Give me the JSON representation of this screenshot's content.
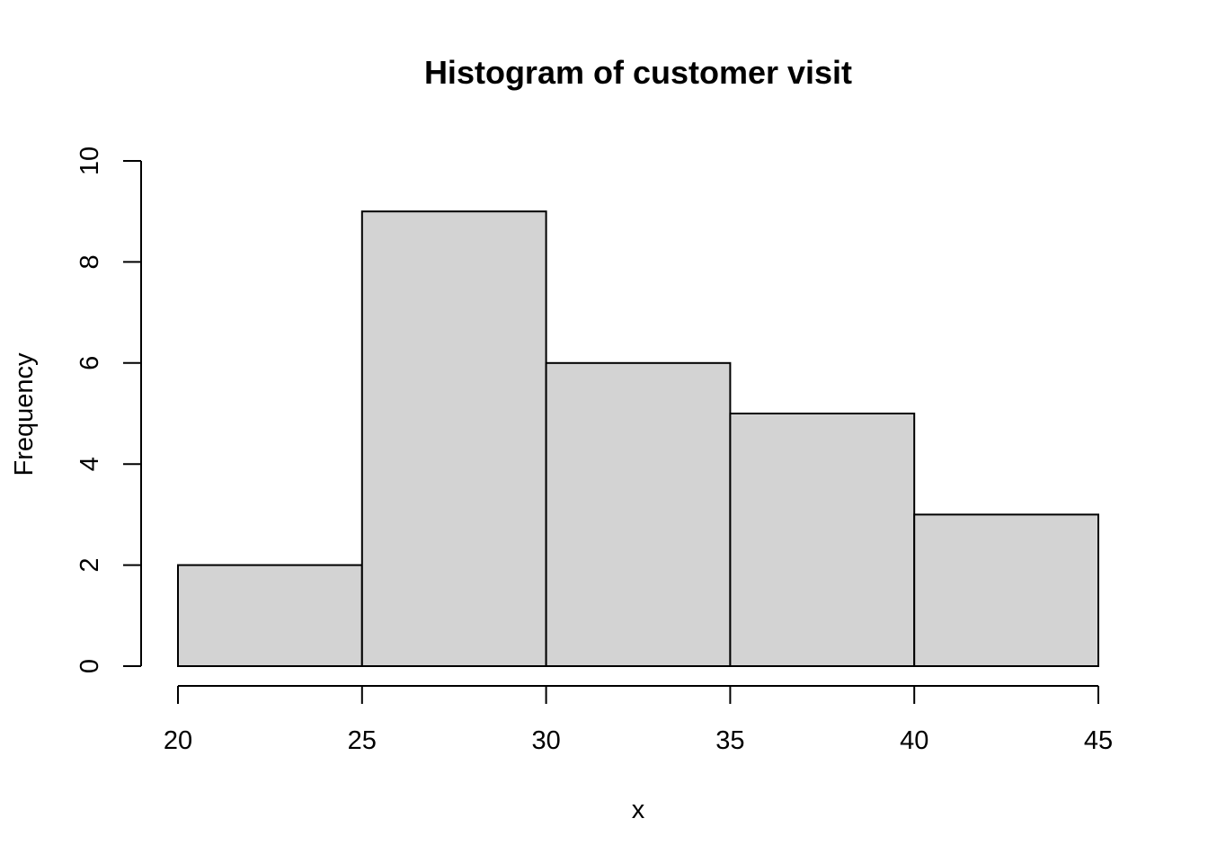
{
  "chart_data": {
    "type": "bar",
    "title": "Histogram of customer visit",
    "xlabel": "x",
    "ylabel": "Frequency",
    "bins": [
      {
        "start": 20,
        "end": 25,
        "count": 2
      },
      {
        "start": 25,
        "end": 30,
        "count": 9
      },
      {
        "start": 30,
        "end": 35,
        "count": 6
      },
      {
        "start": 35,
        "end": 40,
        "count": 5
      },
      {
        "start": 40,
        "end": 45,
        "count": 3
      }
    ],
    "xlim": [
      20,
      45
    ],
    "ylim": [
      0,
      10
    ],
    "x_ticks": [
      20,
      25,
      30,
      35,
      40,
      45
    ],
    "y_ticks": [
      0,
      2,
      4,
      6,
      8,
      10
    ],
    "grid": false,
    "bar_fill": "#d3d3d3",
    "bar_stroke": "#000000"
  }
}
